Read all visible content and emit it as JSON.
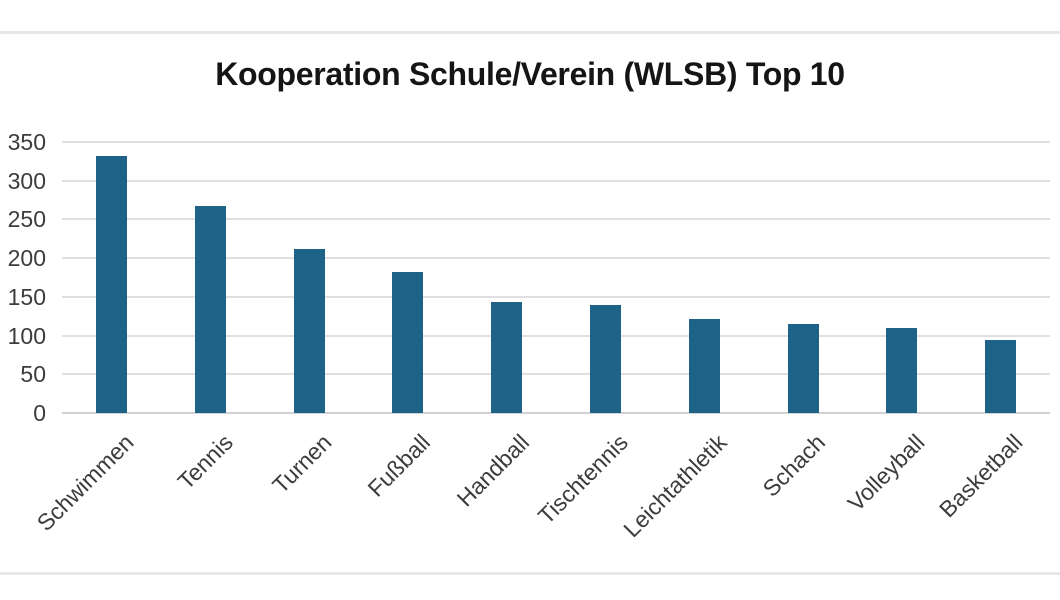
{
  "chart_data": {
    "type": "bar",
    "title": "Kooperation Schule/Verein (WLSB) Top 10",
    "categories": [
      "Schwimmen",
      "Tennis",
      "Turnen",
      "Fußball",
      "Handball",
      "Tischtennis",
      "Leichtathletik",
      "Schach",
      "Volleyball",
      "Basketball"
    ],
    "values": [
      332,
      267,
      212,
      182,
      144,
      140,
      122,
      115,
      110,
      94
    ],
    "xlabel": "",
    "ylabel": "",
    "ylim": [
      0,
      350
    ],
    "yticks": [
      0,
      50,
      100,
      150,
      200,
      250,
      300,
      350
    ],
    "grid": true,
    "legend": false,
    "xtick_rotation_deg": 45,
    "colors": {
      "bar": "#1f6287",
      "gridline": "#dfdfdf",
      "axis_line": "#d2d2d2",
      "tick_label": "#3c3c3c",
      "title": "#151515",
      "divider": "#e7e7e7",
      "background": "#ffffff"
    }
  }
}
